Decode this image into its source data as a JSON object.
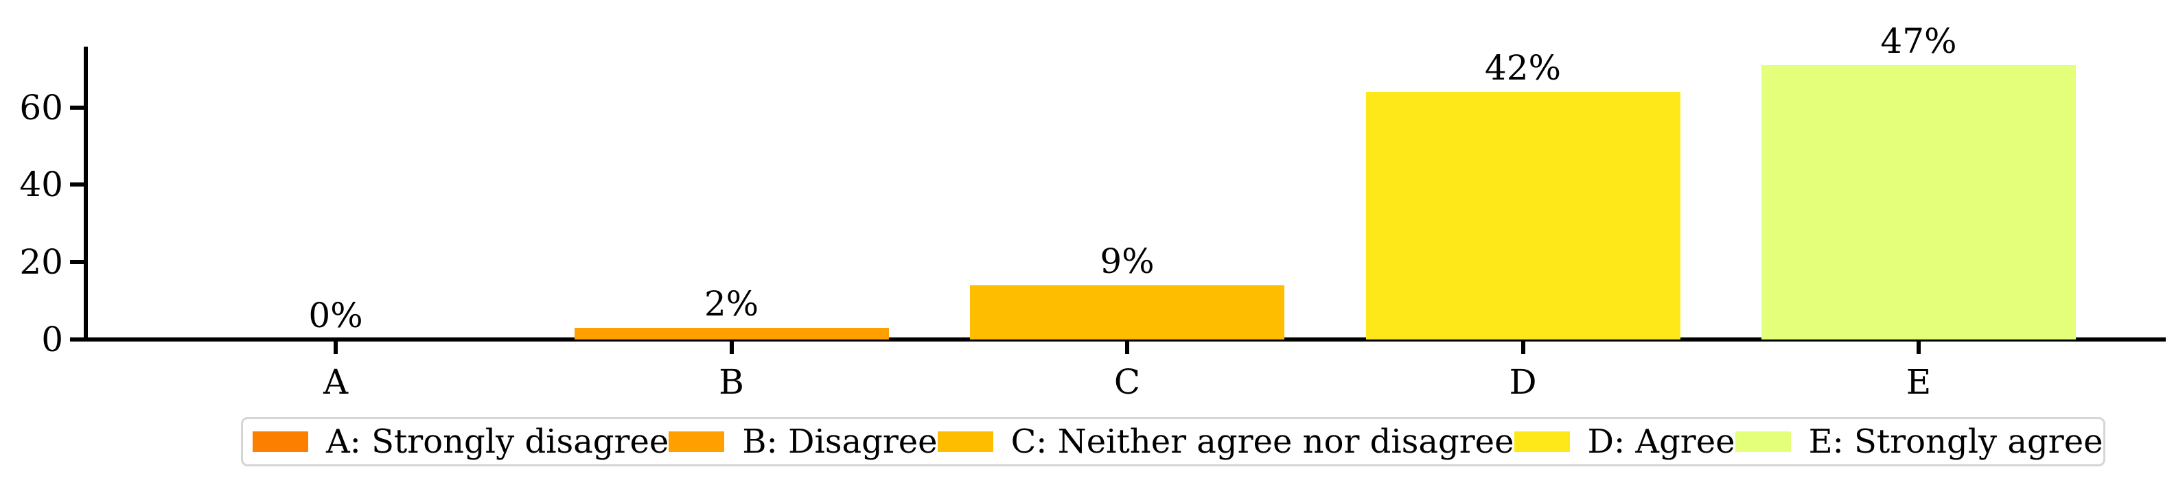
{
  "figure": {
    "background": "#ffffff",
    "axis_color": "#000000",
    "text_color": "#000000"
  },
  "chart_data": {
    "type": "bar",
    "title": "",
    "xlabel": "",
    "ylabel": "",
    "categories": [
      "A",
      "B",
      "C",
      "D",
      "E"
    ],
    "values": [
      0,
      3,
      14,
      64,
      71
    ],
    "bar_labels": [
      "0%",
      "2%",
      "9%",
      "42%",
      "47%"
    ],
    "bar_colors": [
      "#fc7f00",
      "#ffa000",
      "#ffbd00",
      "#ffe81a",
      "#e4ff7a"
    ],
    "ylim": [
      0,
      75
    ],
    "yticks": [
      0,
      20,
      40,
      60
    ],
    "ytick_labels": [
      "0",
      "20",
      "40",
      "60"
    ],
    "grid": false,
    "legend": {
      "position": "lower-center-below-axes",
      "border_color": "#d5d5d5",
      "background": "#ffffff",
      "entries": [
        {
          "label": "A: Strongly disagree",
          "color": "#fc7f00"
        },
        {
          "label": "B: Disagree",
          "color": "#ffa000"
        },
        {
          "label": "C: Neither agree nor disagree",
          "color": "#ffbd00"
        },
        {
          "label": "D: Agree",
          "color": "#ffe81a"
        },
        {
          "label": "E: Strongly agree",
          "color": "#e4ff7a"
        }
      ]
    }
  }
}
